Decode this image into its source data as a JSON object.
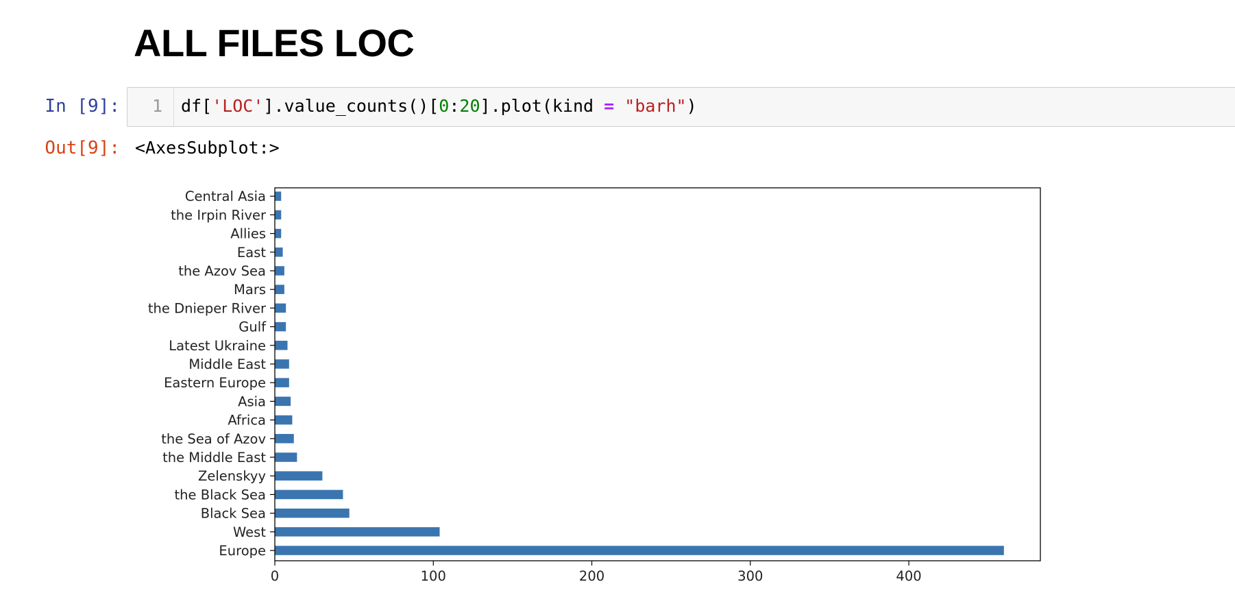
{
  "heading": "ALL FILES LOC",
  "input_cell": {
    "prompt": "In [9]:",
    "line_number": "1",
    "code": {
      "t1": "df[",
      "t2": "'LOC'",
      "t3": "].value_counts()[",
      "t4": "0",
      "t5": ":",
      "t6": "20",
      "t7": "].plot(kind ",
      "t8": "=",
      "t9": " ",
      "t10": "\"barh\"",
      "t11": ")"
    }
  },
  "output_cell": {
    "prompt": "Out[9]:",
    "text": "<AxesSubplot:>"
  },
  "colors": {
    "bar": "#3A75B0",
    "in_prompt": "#303F9F",
    "out_prompt": "#D84315"
  },
  "chart_data": {
    "type": "bar",
    "orientation": "horizontal",
    "categories": [
      "Europe",
      "West",
      "Black Sea",
      "the Black Sea",
      "Zelenskyy",
      "the Middle East",
      "the Sea of Azov",
      "Africa",
      "Asia",
      "Eastern Europe",
      "Middle East",
      "Latest Ukraine",
      "Gulf",
      "the Dnieper River",
      "Mars",
      "the Azov Sea",
      "East",
      "Allies",
      "the Irpin River",
      "Central Asia"
    ],
    "values": [
      460,
      104,
      47,
      43,
      30,
      14,
      12,
      11,
      10,
      9,
      9,
      8,
      7,
      7,
      6,
      6,
      5,
      4,
      4,
      4
    ],
    "xticks": [
      0,
      100,
      200,
      300,
      400
    ],
    "xlim": [
      0,
      483
    ],
    "title": "",
    "xlabel": "",
    "ylabel": "",
    "grid": false,
    "legend": false
  }
}
